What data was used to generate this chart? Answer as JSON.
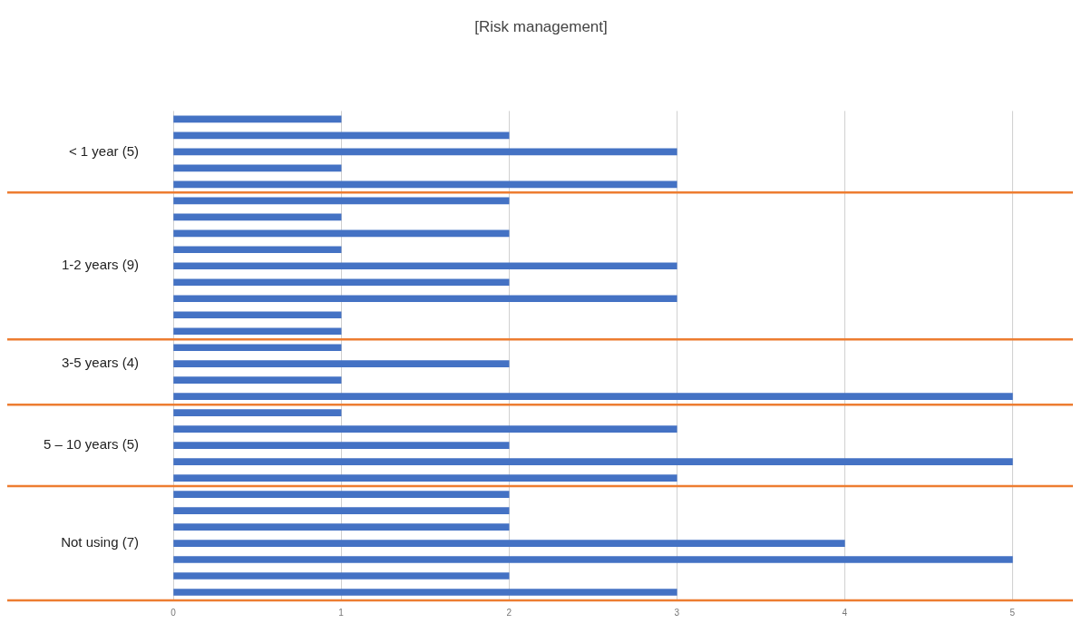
{
  "chart_data": {
    "type": "bar",
    "orientation": "horizontal",
    "title": "[Risk management]",
    "categories": [
      null,
      null,
      "< 1 year (5)",
      null,
      null,
      null,
      null,
      null,
      null,
      "1-2 years (9)",
      null,
      null,
      null,
      null,
      null,
      "3-5 years (4)",
      null,
      null,
      null,
      null,
      "5 – 10 years (5)",
      null,
      null,
      null,
      null,
      null,
      "Not using (7)",
      null,
      null,
      null
    ],
    "values": [
      1,
      2,
      3,
      1,
      3,
      2,
      1,
      2,
      1,
      3,
      2,
      3,
      1,
      1,
      1,
      2,
      1,
      5,
      1,
      3,
      2,
      5,
      3,
      2,
      2,
      2,
      4,
      5,
      2,
      3
    ],
    "color": "#4472c4",
    "xlim": [
      0,
      5.36
    ],
    "xticks": [
      0,
      1,
      2,
      3,
      4,
      5
    ],
    "grid": "x"
  }
}
